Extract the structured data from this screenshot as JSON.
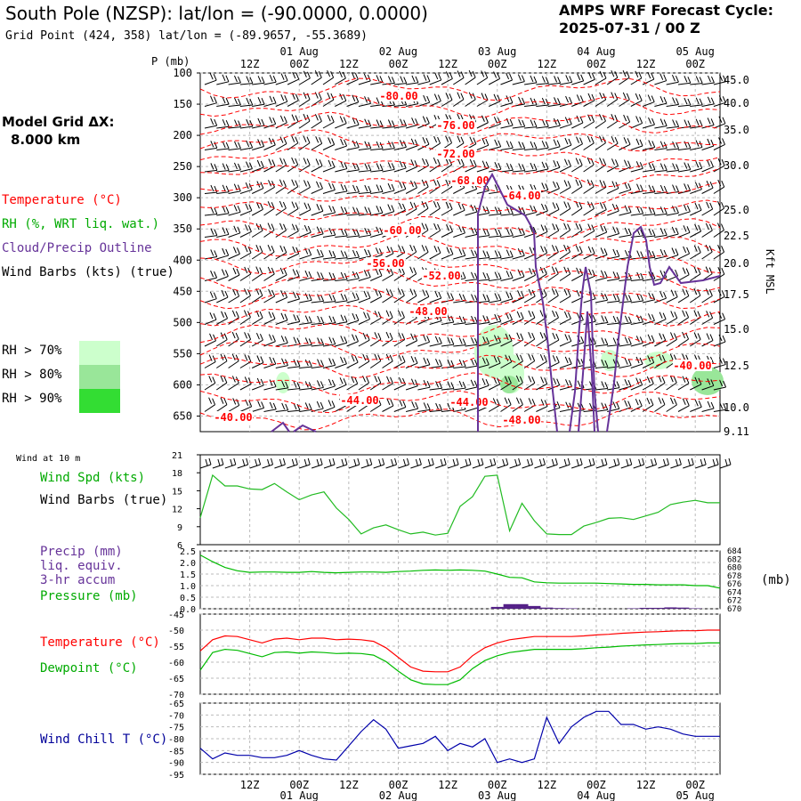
{
  "header": {
    "title": "South Pole (NZSP):  lat/lon = (-90.0000, 0.0000)",
    "grid_point": "Grid Point (424, 358) lat/lon = (-89.9657, -55.3689)",
    "cycle_line1": "AMPS WRF Forecast Cycle:",
    "cycle_line2": "2025-07-31 / 00  Z"
  },
  "model_grid": {
    "line1": "Model Grid ΔX:",
    "line2": "8.000 km"
  },
  "legend": {
    "temperature": "Temperature (°C)",
    "rh": "RH (%, WRT liq. wat.)",
    "cloud": "Cloud/Precip Outline",
    "wind": "Wind Barbs (kts) (true)",
    "rh70": "RH > 70%",
    "rh80": "RH > 80%",
    "rh90": "RH > 90%",
    "rh_colors": [
      "#ccffcc",
      "#99e699",
      "#33dd33"
    ]
  },
  "time_axis": {
    "top_date_labels": [
      "01 Aug",
      "02 Aug",
      "03 Aug",
      "04 Aug",
      "05 Aug"
    ],
    "hour_labels": [
      "12Z",
      "00Z",
      "12Z",
      "00Z",
      "12Z",
      "00Z",
      "12Z",
      "00Z",
      "12Z",
      "00Z"
    ],
    "bottom_date_labels": [
      "01 Aug",
      "02 Aug",
      "03 Aug",
      "04 Aug",
      "05 Aug"
    ]
  },
  "colors": {
    "temperature": "#ff0000",
    "rh": "#00aa00",
    "cloud": "#663399",
    "pressure": "#00bb00",
    "windchill": "#0000aa",
    "grid": "#bbbbbb"
  },
  "chart_data": [
    {
      "type": "line",
      "title": "",
      "ylabel": "P (mb)",
      "y2label": "Kft MSL",
      "y_ticks": [
        100,
        150,
        200,
        250,
        300,
        350,
        400,
        450,
        500,
        550,
        600,
        650
      ],
      "y2_ticks": [
        "45.0",
        "40.0",
        "35.0",
        "30.0",
        "25.0",
        "22.5",
        "20.0",
        "17.5",
        "15.0",
        "12.5",
        "10.0",
        "9.11"
      ],
      "temperature_contour_labels": [
        "-80.00",
        "-76.00",
        "-72.00",
        "-68.00",
        "-64.00",
        "-60.00",
        "-56.00",
        "-52.00",
        "-48.00",
        "-40.00",
        "-44.00",
        "-44.00",
        "-48.00",
        "-40.00"
      ],
      "series": [
        {
          "name": "Temperature (°C)",
          "kind": "contours"
        },
        {
          "name": "RH (%, WRT liq. wat.)",
          "kind": "shaded"
        },
        {
          "name": "Cloud/Precip Outline",
          "kind": "outline"
        },
        {
          "name": "Wind Barbs (kts) (true)",
          "kind": "barbs"
        }
      ]
    },
    {
      "type": "line",
      "title": "Wind at 10 m",
      "ylabel": "Wind Spd (kts)",
      "ylabel2": "Wind Barbs (true)",
      "ylim": [
        6,
        21
      ],
      "y_ticks": [
        21,
        18,
        15,
        12,
        9,
        6
      ],
      "series": [
        {
          "name": "Wind Spd (kts)",
          "values": [
            10.5,
            17.6,
            15.8,
            15.8,
            15.3,
            15.2,
            16.2,
            14.8,
            13.5,
            14.3,
            14.8,
            12.1,
            10.2,
            7.8,
            8.8,
            9.3,
            8.5,
            7.8,
            8.1,
            7.6,
            7.9,
            12.4,
            14.0,
            17.4,
            17.6,
            8.3,
            12.9,
            10.0,
            7.8,
            7.7,
            7.7,
            9.1,
            9.7,
            10.4,
            10.5,
            10.2,
            10.8,
            11.4,
            12.7,
            13.1,
            13.4,
            13.0,
            13.0
          ]
        }
      ]
    },
    {
      "type": "line",
      "ylabel": "Precip (mm)",
      "ylabel_lines": [
        "Precip (mm)",
        "liq. equiv.",
        "3-hr accum",
        "Pressure (mb)"
      ],
      "ylim": [
        0,
        2.5
      ],
      "y_ticks": [
        "2.5",
        "2.0",
        "1.5",
        "1.0",
        "0.5",
        "0.0"
      ],
      "y2lim": [
        670,
        684
      ],
      "y2_ticks": [
        684,
        682,
        680,
        678,
        676,
        674,
        672,
        670
      ],
      "y2label": "(mb)",
      "series": [
        {
          "name": "Pressure (mb)",
          "values": [
            683.0,
            681.4,
            680.0,
            679.2,
            678.8,
            678.9,
            678.9,
            678.8,
            678.8,
            679.0,
            678.8,
            678.7,
            678.8,
            678.9,
            678.9,
            678.8,
            679.0,
            679.1,
            679.3,
            679.4,
            679.3,
            679.4,
            679.3,
            679.1,
            678.4,
            677.6,
            677.5,
            676.5,
            676.3,
            676.2,
            676.2,
            676.2,
            676.2,
            676.1,
            676.0,
            675.9,
            675.9,
            675.8,
            675.8,
            675.8,
            675.6,
            675.6,
            675.0
          ]
        },
        {
          "name": "Precip (mm) liq. equiv. 3-hr accum",
          "values": [
            0,
            0,
            0,
            0,
            0,
            0,
            0,
            0,
            0,
            0,
            0,
            0,
            0,
            0,
            0,
            0,
            0,
            0,
            0,
            0,
            0,
            0,
            0,
            0,
            0.08,
            0.2,
            0.2,
            0.12,
            0.05,
            0.03,
            0.02,
            0,
            0,
            0,
            0,
            0.02,
            0.04,
            0.04,
            0.06,
            0.05,
            0.02,
            0,
            0
          ]
        }
      ]
    },
    {
      "type": "line",
      "ylabel_lines": [
        "Temperature (°C)",
        "Dewpoint (°C)"
      ],
      "ylim": [
        -70,
        -45
      ],
      "y_ticks": [
        -45,
        -50,
        -55,
        -60,
        -65,
        -70
      ],
      "series": [
        {
          "name": "Temperature (°C)",
          "values": [
            -56.5,
            -53.0,
            -51.8,
            -52.0,
            -53.0,
            -54.0,
            -52.8,
            -52.5,
            -53.0,
            -52.5,
            -52.5,
            -53.0,
            -52.8,
            -53.0,
            -53.5,
            -55.5,
            -58.5,
            -61.5,
            -62.8,
            -63.0,
            -63.0,
            -61.5,
            -58.0,
            -55.5,
            -54.0,
            -53.0,
            -52.5,
            -52.0,
            -52.0,
            -52.0,
            -52.0,
            -51.8,
            -51.5,
            -51.3,
            -51.0,
            -50.8,
            -50.6,
            -50.5,
            -50.3,
            -50.2,
            -50.2,
            -50.0,
            -50.0
          ]
        },
        {
          "name": "Dewpoint (°C)",
          "values": [
            -62.5,
            -57.0,
            -56.0,
            -56.3,
            -57.3,
            -58.3,
            -57.0,
            -56.8,
            -57.2,
            -56.8,
            -57.0,
            -57.3,
            -57.2,
            -57.3,
            -57.8,
            -59.8,
            -62.8,
            -65.5,
            -66.8,
            -67.0,
            -67.0,
            -65.5,
            -62.0,
            -59.5,
            -58.0,
            -57.0,
            -56.5,
            -56.0,
            -56.0,
            -56.0,
            -56.0,
            -55.8,
            -55.5,
            -55.3,
            -55.0,
            -54.8,
            -54.6,
            -54.5,
            -54.3,
            -54.2,
            -54.2,
            -54.0,
            -54.0
          ]
        }
      ]
    },
    {
      "type": "line",
      "ylabel": "Wind Chill T (°C)",
      "ylim": [
        -95,
        -65
      ],
      "y_ticks": [
        -65,
        -70,
        -75,
        -80,
        -85,
        -90,
        -95
      ],
      "series": [
        {
          "name": "Wind Chill T (°C)",
          "values": [
            -84.0,
            -88.5,
            -86.0,
            -87.0,
            -87.0,
            -88.0,
            -88.0,
            -87.0,
            -85.0,
            -87.0,
            -88.5,
            -89.0,
            -83.0,
            -77.0,
            -72.0,
            -76.0,
            -84.0,
            -83.0,
            -82.0,
            -79.0,
            -85.0,
            -82.0,
            -83.5,
            -80.0,
            -90.0,
            -88.5,
            -90.0,
            -88.5,
            -71.0,
            -82.0,
            -75.0,
            -71.0,
            -68.5,
            -68.5,
            -74.0,
            -74.0,
            -76.0,
            -75.0,
            -76.0,
            -78.0,
            -79.0,
            -79.0,
            -79.0
          ]
        }
      ]
    }
  ]
}
